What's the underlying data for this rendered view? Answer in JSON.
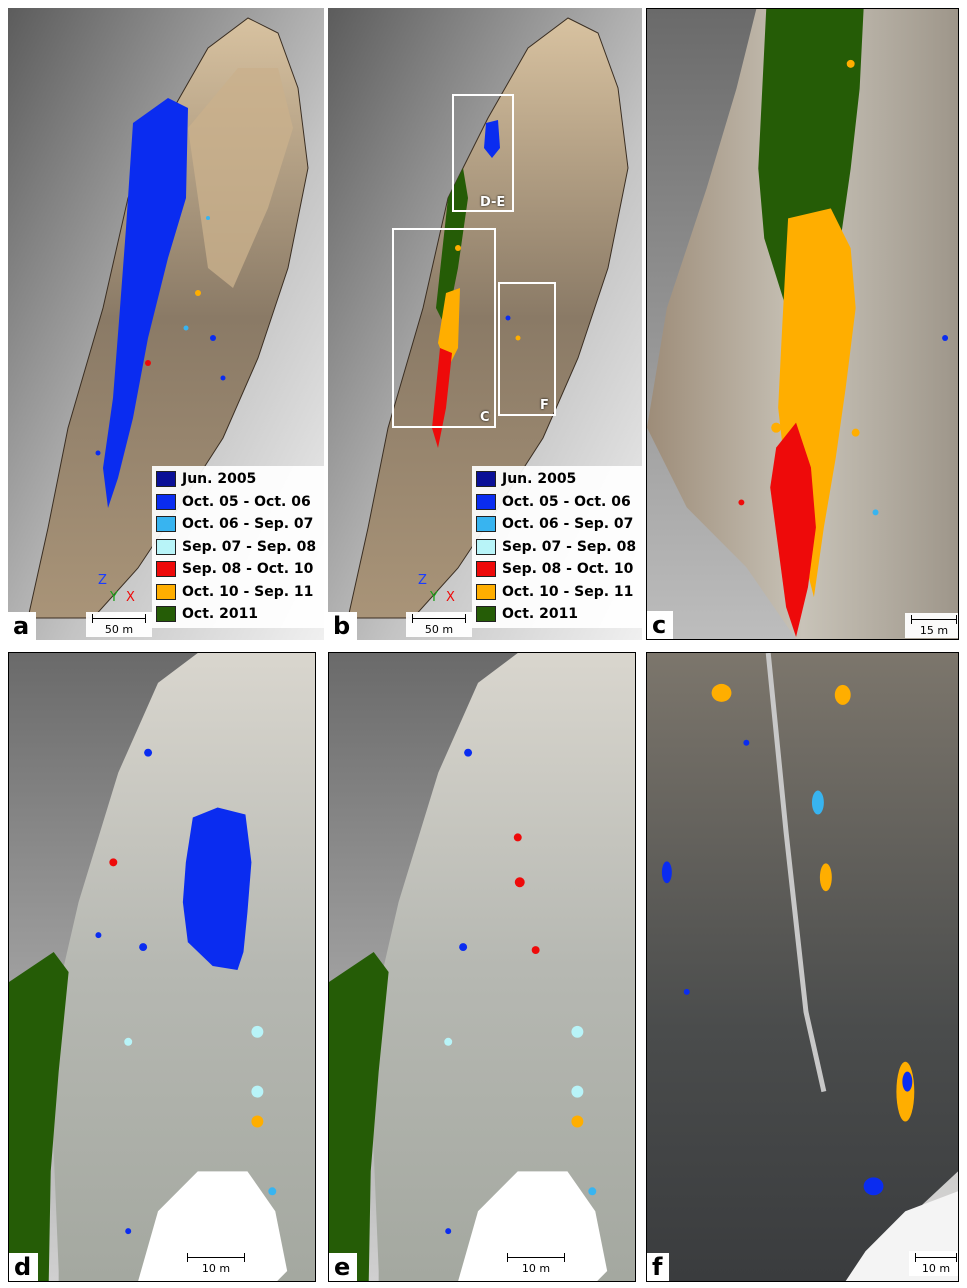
{
  "panels": {
    "a": {
      "label": "a"
    },
    "b": {
      "label": "b"
    },
    "c": {
      "label": "c"
    },
    "d": {
      "label": "d"
    },
    "e": {
      "label": "e"
    },
    "f": {
      "label": "f"
    }
  },
  "legend": {
    "items": [
      {
        "label": "Jun. 2005",
        "color": "#0a0f96"
      },
      {
        "label": "Oct. 05 - Oct. 06",
        "color": "#0a2cf0"
      },
      {
        "label": "Oct. 06 - Sep. 07",
        "color": "#38b4f0"
      },
      {
        "label": "Sep. 07 - Sep. 08",
        "color": "#b8f4f8"
      },
      {
        "label": "Sep. 08 - Oct. 10",
        "color": "#ee0a0a"
      },
      {
        "label": "Oct. 10 - Sep. 11",
        "color": "#ffae00"
      },
      {
        "label": "Oct. 2011",
        "color": "#255c06"
      }
    ]
  },
  "axes": {
    "z": "Z",
    "y": "Y",
    "x": "X"
  },
  "scalebars": {
    "a": "50 m",
    "b": "50 m",
    "c": "15 m",
    "d": "10 m",
    "e": "10 m",
    "f": "10 m"
  },
  "boxes": {
    "de": "D-E",
    "c": "C",
    "f": "F"
  },
  "colors": {
    "rock": "#b9a488",
    "background_top": "#6a6a6a",
    "background_bottom": "#e8e8e8"
  }
}
